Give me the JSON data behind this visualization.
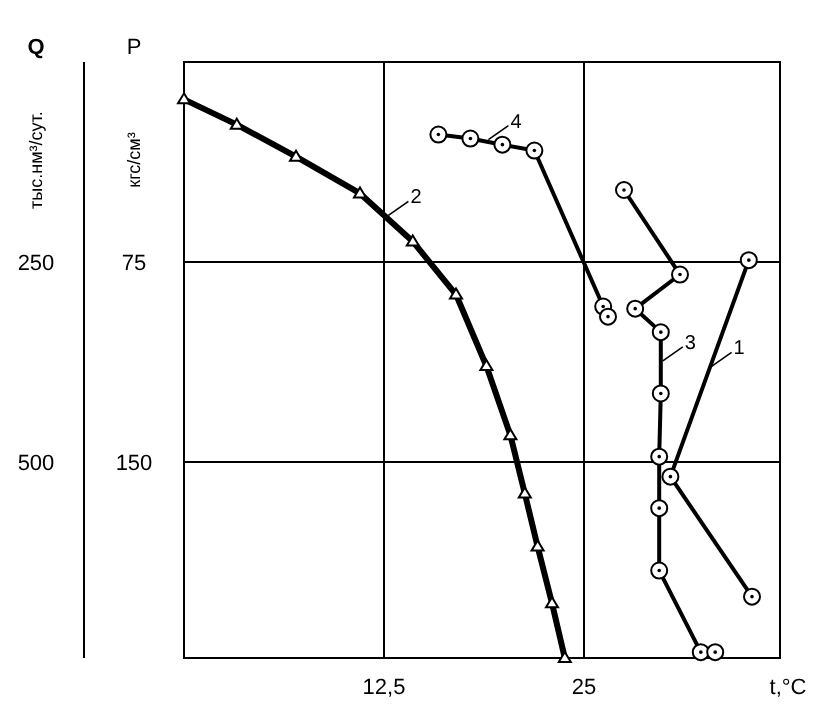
{
  "chart_data": {
    "type": "line",
    "xlabel": "t,°C",
    "ylabel": "P",
    "y2label": "Q",
    "xlim": [
      0,
      37.25
    ],
    "xticks": [
      {
        "value": 12.5,
        "label": "12,5"
      },
      25
    ],
    "ylim": [
      223.5,
      0
    ],
    "yticks": [
      75,
      150
    ],
    "y2lim": [
      745,
      0
    ],
    "y2ticks": [
      250,
      500
    ],
    "grid": true,
    "line_style": "solid",
    "series": [
      {
        "color": "#000000",
        "marker": "circle",
        "x": [
          35.3,
          30.4,
          35.5
        ],
        "values": [
          74.3,
          155.5,
          200.5
        ]
      },
      {
        "color": "#000000",
        "marker": "triangle",
        "x": [
          0,
          3.3,
          7.0,
          11.0,
          14.3,
          17.0,
          18.9,
          20.4,
          21.3,
          22.1,
          23.0,
          23.8
        ],
        "values": [
          14,
          23.5,
          35.5,
          49.3,
          67.3,
          87.2,
          114,
          140,
          161.8,
          181.7,
          203,
          223.5
        ]
      },
      {
        "color": "#000000",
        "marker": "circle",
        "x": [
          27.5,
          31,
          28.2,
          29.8,
          29.8,
          29.7,
          29.7,
          29.7,
          32.3,
          33.2
        ],
        "values": [
          48,
          79.7,
          92.5,
          101.3,
          124.3,
          148,
          167.3,
          190.7,
          221.3,
          221.3
        ]
      },
      {
        "color": "#000000",
        "marker": "circle",
        "x": [
          15.9,
          17.9,
          19.9,
          21.9,
          26.2,
          26.5
        ],
        "values": [
          27.2,
          28.7,
          31,
          33.2,
          91.7,
          95.5
        ]
      }
    ],
    "annotations": [
      "1",
      "2",
      "3",
      "4",
      "кгс/см³",
      "тыс.нм³/сут."
    ]
  }
}
